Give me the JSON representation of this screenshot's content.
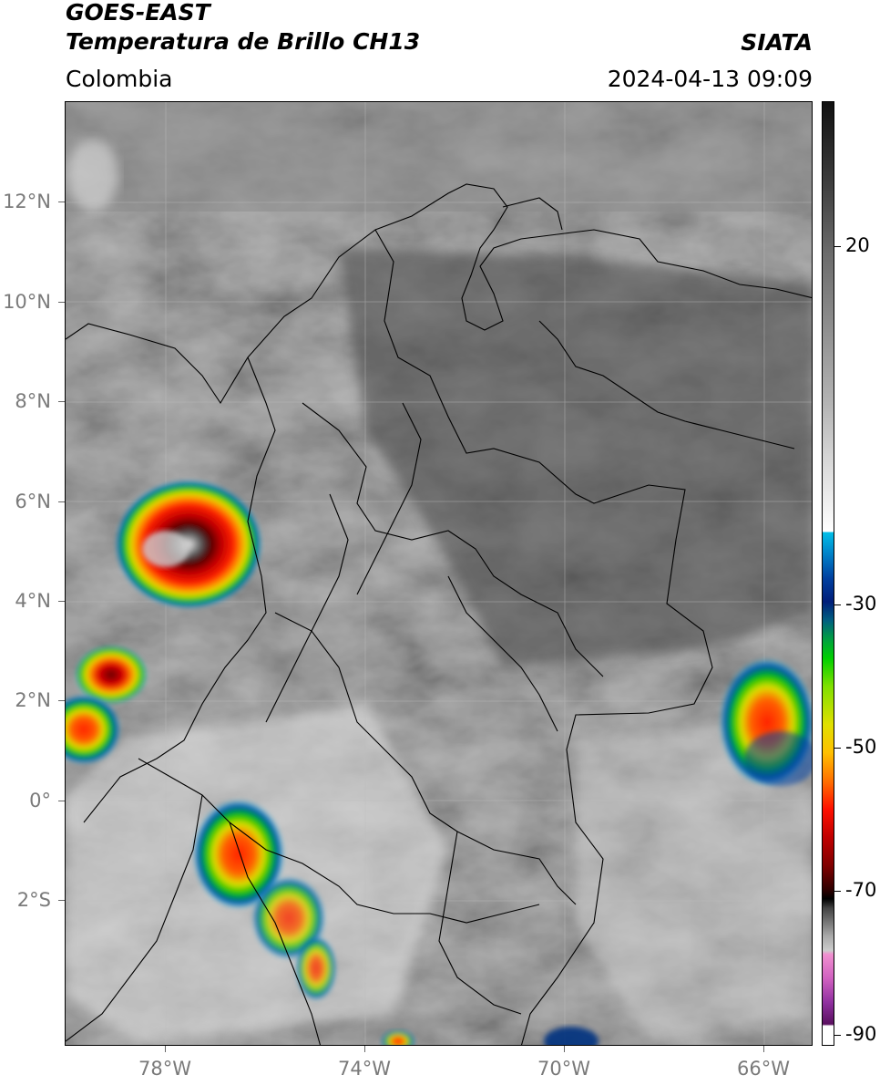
{
  "header": {
    "line1": "GOES-EAST",
    "line2": "Temperatura de Brillo CH13",
    "brand": "SIATA",
    "region": "Colombia",
    "timestamp": "2024-04-13 09:09"
  },
  "axes": {
    "lat_ticks": [
      "12°N",
      "10°N",
      "8°N",
      "6°N",
      "4°N",
      "2°N",
      "0°",
      "2°S"
    ],
    "lon_ticks": [
      "78°W",
      "74°W",
      "70°W",
      "66°W"
    ]
  },
  "colorbar": {
    "ticks": [
      "20",
      "-30",
      "-50",
      "-70",
      "-90"
    ],
    "colors": {
      "warm_gray_top": "#111111",
      "light": "#ffffff",
      "cyan": "#00bfe8",
      "dark_blue": "#001e7a",
      "green": "#00d000",
      "yellow": "#e0e000",
      "red": "#ff1000",
      "dark_red": "#800000",
      "magenta": "#d060c0",
      "purple": "#5a1060"
    }
  }
}
